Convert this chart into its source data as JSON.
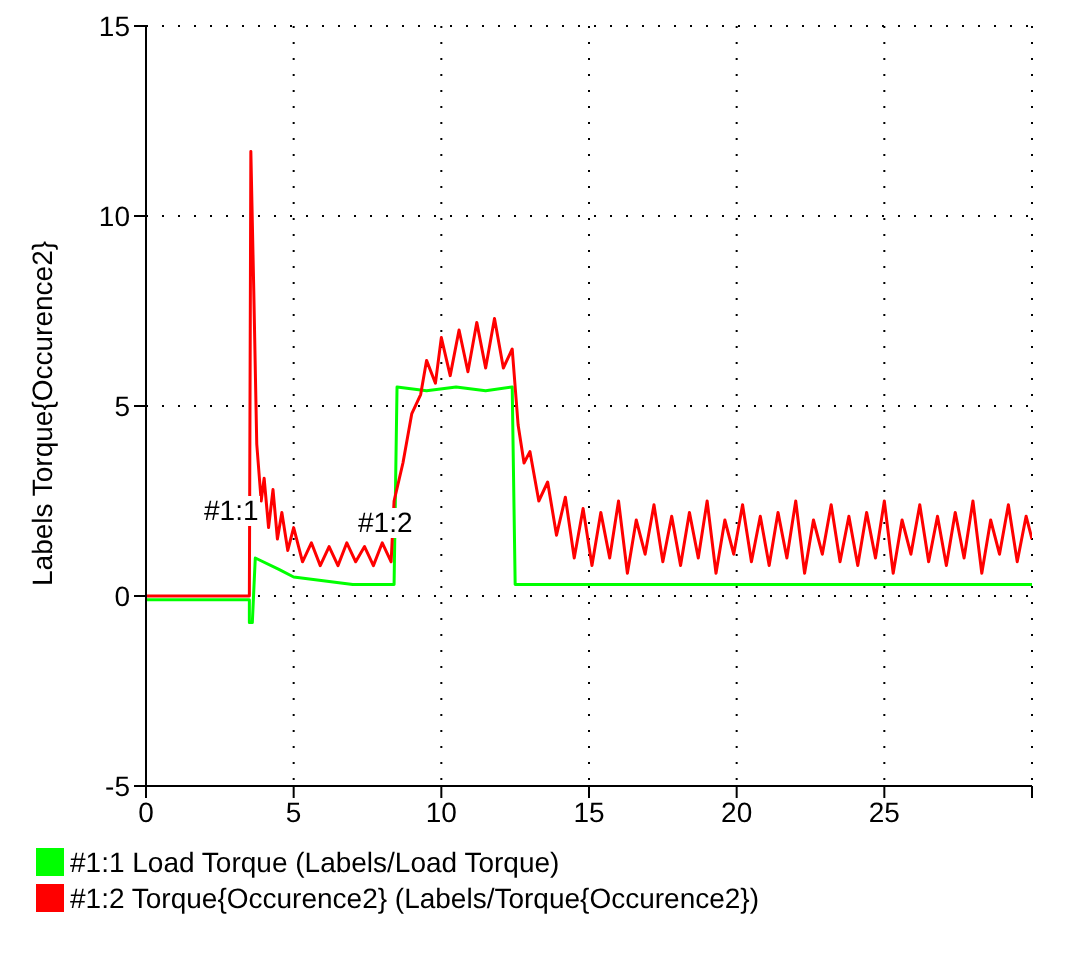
{
  "chart_data": {
    "type": "line",
    "ylabel": "Labels Torque{Occurence2}",
    "xlim": [
      0,
      30
    ],
    "xticks": [
      0,
      5,
      10,
      15,
      20,
      25,
      {
        "value": 30,
        "label": null
      }
    ],
    "ylim": [
      -5,
      15
    ],
    "yticks": [
      -5,
      0,
      5,
      10,
      15
    ],
    "grid": true,
    "legend": "bottom left",
    "marker": "none",
    "line_style": "solid",
    "annotations": [
      "#1:1",
      "#1:2"
    ],
    "series": [
      {
        "name": "#1:1 Load Torque (Labels/Load Torque)",
        "color": "#00ff00",
        "x": [
          0,
          3.5,
          3.5,
          3.6,
          3.7,
          4.5,
          5,
          6,
          7,
          8,
          8.4,
          8.5,
          9.5,
          10.5,
          11.5,
          12.4,
          12.5,
          15,
          20,
          25,
          30
        ],
        "values": [
          -0.1,
          -0.1,
          -0.7,
          -0.7,
          1.0,
          0.7,
          0.5,
          0.4,
          0.3,
          0.3,
          0.3,
          5.5,
          5.4,
          5.5,
          5.4,
          5.5,
          0.3,
          0.3,
          0.3,
          0.3,
          0.3
        ]
      },
      {
        "name": "#1:2 Torque{Occurence2} (Labels/Torque{Occurence2})",
        "color": "#ff0000",
        "x": [
          0,
          3.5,
          3.55,
          3.65,
          3.75,
          3.9,
          4.0,
          4.15,
          4.3,
          4.45,
          4.6,
          4.8,
          5.0,
          5.3,
          5.6,
          5.9,
          6.2,
          6.5,
          6.8,
          7.1,
          7.4,
          7.7,
          8.0,
          8.3,
          8.4,
          8.7,
          9.0,
          9.3,
          9.5,
          9.8,
          10.0,
          10.3,
          10.6,
          10.9,
          11.2,
          11.5,
          11.8,
          12.1,
          12.4,
          12.6,
          12.8,
          13.0,
          13.3,
          13.6,
          13.9,
          14.2,
          14.5,
          14.8,
          15.1,
          15.4,
          15.7,
          16.0,
          16.3,
          16.6,
          16.9,
          17.2,
          17.5,
          17.8,
          18.1,
          18.4,
          18.7,
          19.0,
          19.3,
          19.6,
          19.9,
          20.2,
          20.5,
          20.8,
          21.1,
          21.4,
          21.7,
          22.0,
          22.3,
          22.6,
          22.9,
          23.2,
          23.5,
          23.8,
          24.1,
          24.4,
          24.7,
          25.0,
          25.3,
          25.6,
          25.9,
          26.2,
          26.5,
          26.8,
          27.1,
          27.4,
          27.7,
          28.0,
          28.3,
          28.6,
          28.9,
          29.2,
          29.5,
          29.8,
          30
        ],
        "values": [
          0,
          0,
          11.7,
          8,
          4,
          2.5,
          3.1,
          1.8,
          2.8,
          1.5,
          2.2,
          1.2,
          1.8,
          0.9,
          1.4,
          0.8,
          1.3,
          0.8,
          1.4,
          0.9,
          1.3,
          0.8,
          1.4,
          0.9,
          2.5,
          3.5,
          4.8,
          5.3,
          6.2,
          5.6,
          6.8,
          5.8,
          7.0,
          5.9,
          7.2,
          6.0,
          7.3,
          6.0,
          6.5,
          4.5,
          3.5,
          3.8,
          2.5,
          3.0,
          1.6,
          2.6,
          1.0,
          2.3,
          0.8,
          2.2,
          1.0,
          2.5,
          0.6,
          2.0,
          1.1,
          2.4,
          0.9,
          2.1,
          0.8,
          2.2,
          1.0,
          2.5,
          0.6,
          2.0,
          1.1,
          2.4,
          0.9,
          2.1,
          0.8,
          2.2,
          1.0,
          2.5,
          0.6,
          2.0,
          1.1,
          2.4,
          0.9,
          2.1,
          0.8,
          2.2,
          1.0,
          2.5,
          0.6,
          2.0,
          1.1,
          2.4,
          0.9,
          2.1,
          0.8,
          2.2,
          1.0,
          2.5,
          0.6,
          2.0,
          1.1,
          2.4,
          0.9,
          2.1,
          1.5
        ]
      }
    ]
  }
}
